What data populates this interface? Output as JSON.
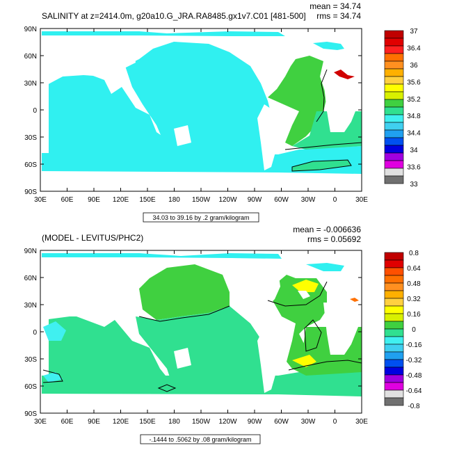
{
  "chart_data": [
    {
      "type": "heatmap",
      "title": "SALINITY at z=2414.0m, g20a10.G_JRA.RA8485.gx1v7.C01 [481-500]",
      "stats": {
        "mean": "mean = 34.74",
        "rms": "rms = 34.74"
      },
      "x_ticks": [
        "30E",
        "60E",
        "90E",
        "120E",
        "150E",
        "180",
        "150W",
        "120W",
        "90W",
        "60W",
        "30W",
        "0",
        "30E"
      ],
      "y_ticks": [
        "90N",
        "60N",
        "30N",
        "0",
        "30S",
        "60S",
        "90S"
      ],
      "range_label": "34.03 to 39.16 by .2 gram/kilogram",
      "colorbar": {
        "labels": [
          "37",
          "36.4",
          "36",
          "35.6",
          "35.2",
          "34.8",
          "34.4",
          "34",
          "33.6",
          "33"
        ],
        "colors": [
          "#c00000",
          "#e00000",
          "#ff2020",
          "#ff7000",
          "#ff9020",
          "#ffb000",
          "#ffd040",
          "#ffff00",
          "#d8f000",
          "#40d040",
          "#30e090",
          "#40f0f0",
          "#40d0f0",
          "#20a0f0",
          "#0050f0",
          "#0000e0",
          "#a000e0",
          "#e000e0",
          "#e0e0e0",
          "#707070"
        ]
      }
    },
    {
      "type": "heatmap",
      "title": "(MODEL - LEVITUS/PHC2)",
      "stats": {
        "mean": "mean = -0.006636",
        "rms": "rms = 0.05692"
      },
      "x_ticks": [
        "30E",
        "60E",
        "90E",
        "120E",
        "150E",
        "180",
        "150W",
        "120W",
        "90W",
        "60W",
        "30W",
        "0",
        "30E"
      ],
      "y_ticks": [
        "90N",
        "60N",
        "30N",
        "0",
        "30S",
        "60S",
        "90S"
      ],
      "range_label": "-.1444 to .5062 by .08 gram/kilogram",
      "colorbar": {
        "labels": [
          "0.8",
          "0.64",
          "0.48",
          "0.32",
          "0.16",
          "0",
          "-0.16",
          "-0.32",
          "-0.48",
          "-0.64",
          "-0.8"
        ],
        "colors": [
          "#c00000",
          "#e00000",
          "#ff5000",
          "#ff7000",
          "#ff9020",
          "#ffb000",
          "#ffd040",
          "#ffff00",
          "#d8f000",
          "#40d040",
          "#30e090",
          "#40f0f0",
          "#40d0f0",
          "#20a0f0",
          "#0050f0",
          "#0000e0",
          "#a000e0",
          "#e000e0",
          "#e0e0e0",
          "#707070"
        ]
      }
    }
  ]
}
